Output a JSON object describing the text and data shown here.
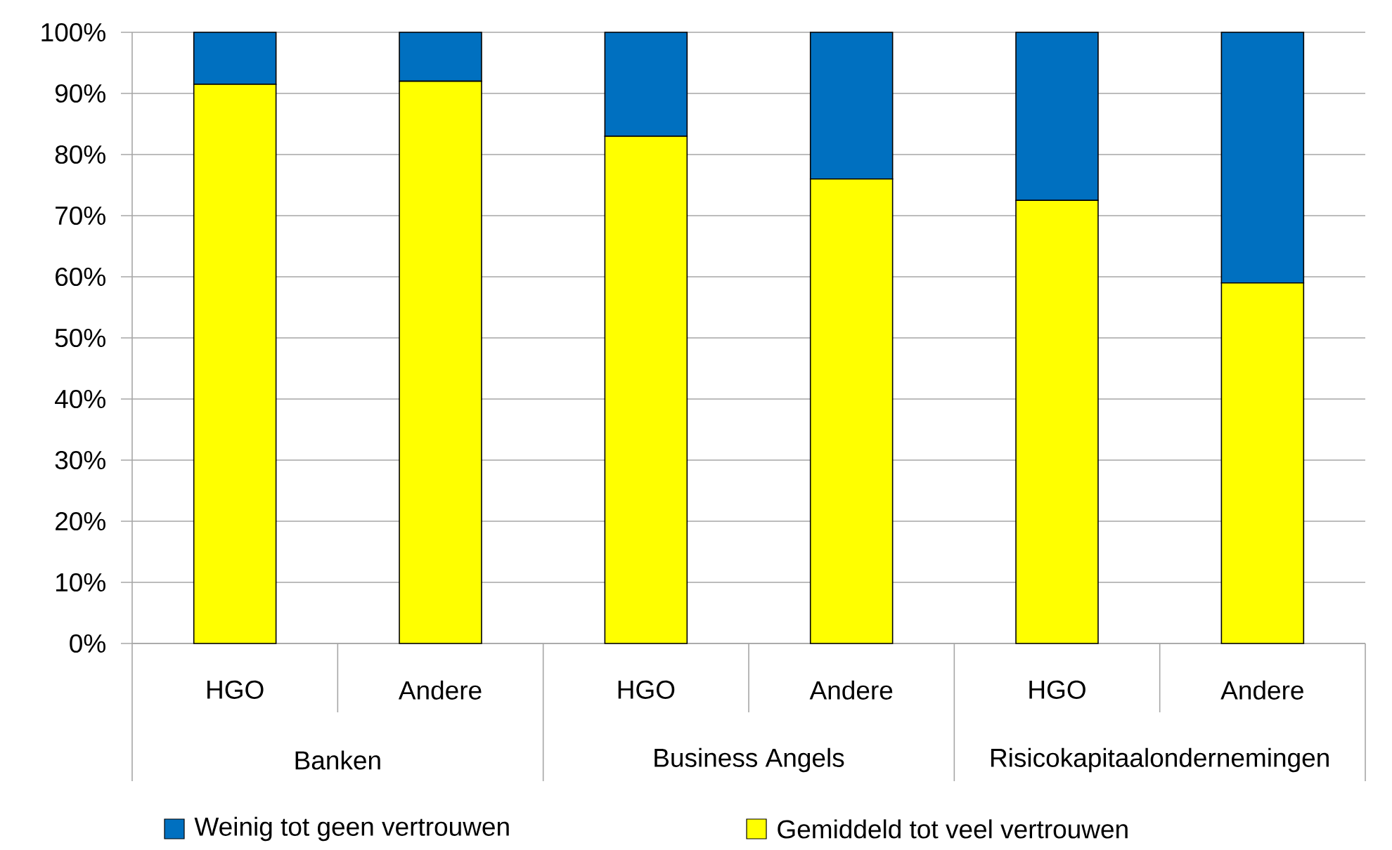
{
  "chart_data": {
    "type": "bar",
    "stacked": true,
    "categories": [
      "HGO",
      "Andere",
      "HGO",
      "Andere",
      "HGO",
      "Andere"
    ],
    "series": [
      {
        "name": "Gemiddeld tot veel vertrouwen",
        "color": "#ffff00",
        "values": [
          91.5,
          92,
          83,
          76,
          72.5,
          59
        ]
      },
      {
        "name": "Weinig tot geen vertrouwen",
        "color": "#0070c0",
        "values": [
          8.5,
          8,
          17,
          24,
          27.5,
          41
        ]
      }
    ],
    "ylim": [
      0,
      100
    ],
    "yticks": [
      {
        "value": 0,
        "label": "0%"
      },
      {
        "value": 10,
        "label": "10%"
      },
      {
        "value": 20,
        "label": "20%"
      },
      {
        "value": 30,
        "label": "30%"
      },
      {
        "value": 40,
        "label": "40%"
      },
      {
        "value": 50,
        "label": "50%"
      },
      {
        "value": 60,
        "label": "60%"
      },
      {
        "value": 70,
        "label": "70%"
      },
      {
        "value": 80,
        "label": "80%"
      },
      {
        "value": 90,
        "label": "90%"
      },
      {
        "value": 100,
        "label": "100%"
      }
    ],
    "grid": "y",
    "legend": "bottom",
    "annotations": [
      "Banken",
      "Business Angels",
      "Risicokapitaalondernemingen"
    ]
  }
}
